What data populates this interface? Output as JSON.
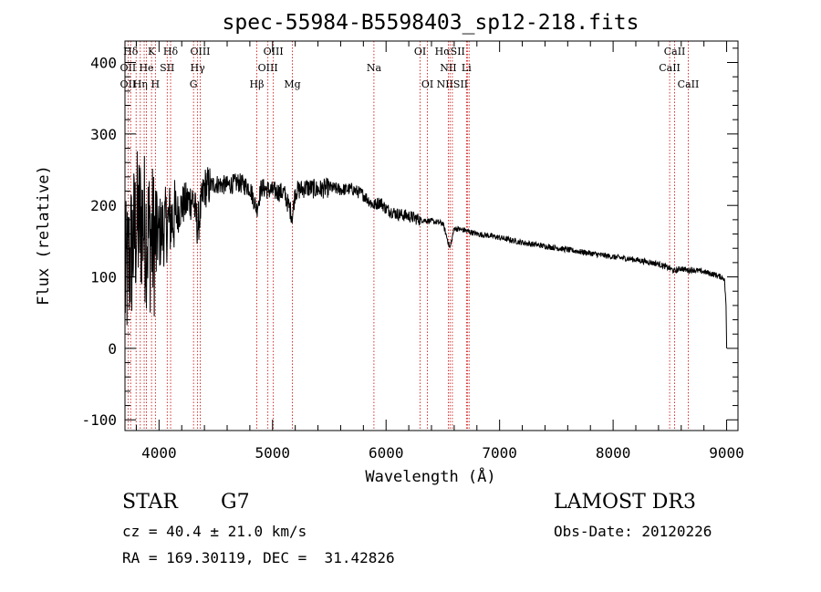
{
  "chart_data": {
    "type": "line",
    "title": "spec-55984-B5598403_sp12-218.fits",
    "xlabel": "Wavelength (Å)",
    "ylabel": "Flux (relative)",
    "xlim": [
      3700,
      9100
    ],
    "ylim": [
      -115,
      430
    ],
    "xticks": [
      4000,
      5000,
      6000,
      7000,
      8000,
      9000
    ],
    "yticks": [
      -100,
      0,
      100,
      200,
      300,
      400
    ],
    "grid": false,
    "line_color": "#000000",
    "marker_color": "#cc0000",
    "series": [
      {
        "name": "flux",
        "x": [
          3700,
          3750,
          3800,
          3850,
          3900,
          3950,
          4000,
          4050,
          4100,
          4150,
          4200,
          4300,
          4340,
          4400,
          4500,
          4600,
          4700,
          4800,
          4861,
          4900,
          5000,
          5100,
          5175,
          5200,
          5300,
          5400,
          5500,
          5600,
          5700,
          5800,
          5890,
          5950,
          6000,
          6100,
          6200,
          6300,
          6400,
          6500,
          6563,
          6600,
          6700,
          6800,
          6900,
          7000,
          7200,
          7400,
          7600,
          7800,
          8000,
          8200,
          8400,
          8498,
          8542,
          8600,
          8662,
          8700,
          8800,
          8900,
          8980,
          8995,
          9000
        ],
        "y": [
          90,
          130,
          170,
          180,
          160,
          150,
          160,
          170,
          180,
          185,
          200,
          210,
          170,
          225,
          230,
          228,
          232,
          225,
          195,
          225,
          220,
          218,
          185,
          220,
          225,
          222,
          225,
          222,
          223,
          215,
          200,
          205,
          195,
          188,
          185,
          180,
          178,
          175,
          140,
          168,
          165,
          160,
          158,
          155,
          148,
          143,
          138,
          133,
          128,
          124,
          118,
          112,
          108,
          112,
          109,
          110,
          107,
          103,
          98,
          60,
          0
        ]
      }
    ],
    "line_markers": [
      {
        "label": "Hδ",
        "x": 3750,
        "row": 0
      },
      {
        "label": "K",
        "x": 3934,
        "row": 0
      },
      {
        "label": "Hδ",
        "x": 4102,
        "row": 0
      },
      {
        "label": "OIII",
        "x": 4363,
        "row": 0
      },
      {
        "label": "OIII",
        "x": 5007,
        "row": 0
      },
      {
        "label": "OI",
        "x": 6300,
        "row": 0
      },
      {
        "label": "HαSII",
        "x": 6563,
        "row": 0
      },
      {
        "label": "CaII",
        "x": 8542,
        "row": 0
      },
      {
        "label": "OII",
        "x": 3727,
        "row": 1
      },
      {
        "label": "He",
        "x": 3889,
        "row": 1
      },
      {
        "label": "SII",
        "x": 4072,
        "row": 1
      },
      {
        "label": "Hγ",
        "x": 4340,
        "row": 1
      },
      {
        "label": "OIII",
        "x": 4959,
        "row": 1
      },
      {
        "label": "Na",
        "x": 5893,
        "row": 1
      },
      {
        "label": "NII",
        "x": 6548,
        "row": 1
      },
      {
        "label": "Li",
        "x": 6708,
        "row": 1
      },
      {
        "label": "CaII",
        "x": 8498,
        "row": 1
      },
      {
        "label": "OII",
        "x": 3727,
        "row": 2
      },
      {
        "label": "Hη",
        "x": 3835,
        "row": 2
      },
      {
        "label": "H",
        "x": 3968,
        "row": 2
      },
      {
        "label": "G",
        "x": 4304,
        "row": 2
      },
      {
        "label": "Hβ",
        "x": 4861,
        "row": 2
      },
      {
        "label": "Mg",
        "x": 5175,
        "row": 2
      },
      {
        "label": "OI",
        "x": 6364,
        "row": 2
      },
      {
        "label": "NIISII",
        "x": 6584,
        "row": 2
      },
      {
        "label": "CaII",
        "x": 8662,
        "row": 2
      }
    ],
    "marker_positions": [
      3727,
      3750,
      3798,
      3835,
      3869,
      3889,
      3934,
      3968,
      4072,
      4102,
      4304,
      4340,
      4363,
      4861,
      4959,
      5007,
      5175,
      5893,
      6300,
      6364,
      6548,
      6563,
      6584,
      6708,
      6716,
      6731,
      8498,
      8542,
      8662
    ]
  },
  "info": {
    "class_label": "STAR",
    "subclass": "G7",
    "survey": "LAMOST DR3",
    "velocity": "cz = 40.4 ± 21.0 km/s",
    "obs_date": "Obs-Date: 20120226",
    "coords": "RA = 169.30119, DEC =  31.42826"
  }
}
